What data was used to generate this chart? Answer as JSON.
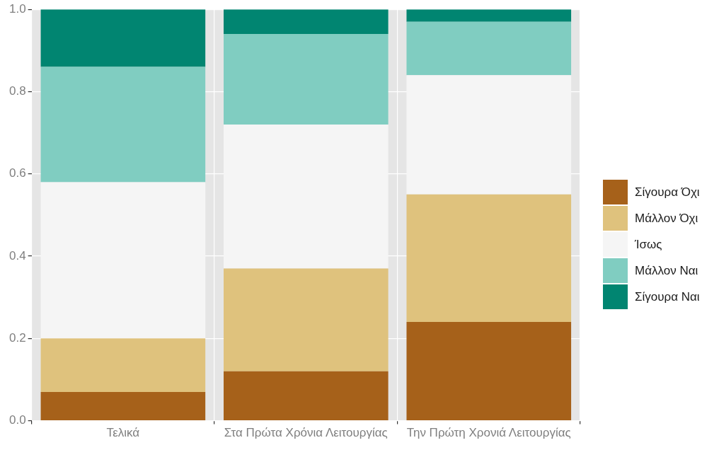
{
  "chart_data": {
    "type": "bar",
    "stacked": true,
    "categories": [
      "Τελικά",
      "Στα Πρώτα Χρόνια Λειτουργίας",
      "Την Πρώτη Χρονιά Λειτουργίας"
    ],
    "series": [
      {
        "name": "Σίγουρα Όχι",
        "color": "#a6611a",
        "values": [
          0.07,
          0.12,
          0.24
        ]
      },
      {
        "name": "Μάλλον Όχι",
        "color": "#dfc27d",
        "values": [
          0.13,
          0.25,
          0.31
        ]
      },
      {
        "name": "Ίσως",
        "color": "#f5f5f5",
        "values": [
          0.38,
          0.35,
          0.29
        ]
      },
      {
        "name": "Μάλλον Ναι",
        "color": "#80cdc1",
        "values": [
          0.28,
          0.22,
          0.13
        ]
      },
      {
        "name": "Σίγουρα Ναι",
        "color": "#018571",
        "values": [
          0.14,
          0.06,
          0.03
        ]
      }
    ],
    "ylim": [
      0,
      1.0
    ],
    "yticks": [
      {
        "value": 0,
        "label": "0.0"
      },
      0.2,
      0.4,
      0.6,
      0.8,
      {
        "value": 1,
        "label": "1.0"
      }
    ],
    "grid": true,
    "legend": "right"
  }
}
